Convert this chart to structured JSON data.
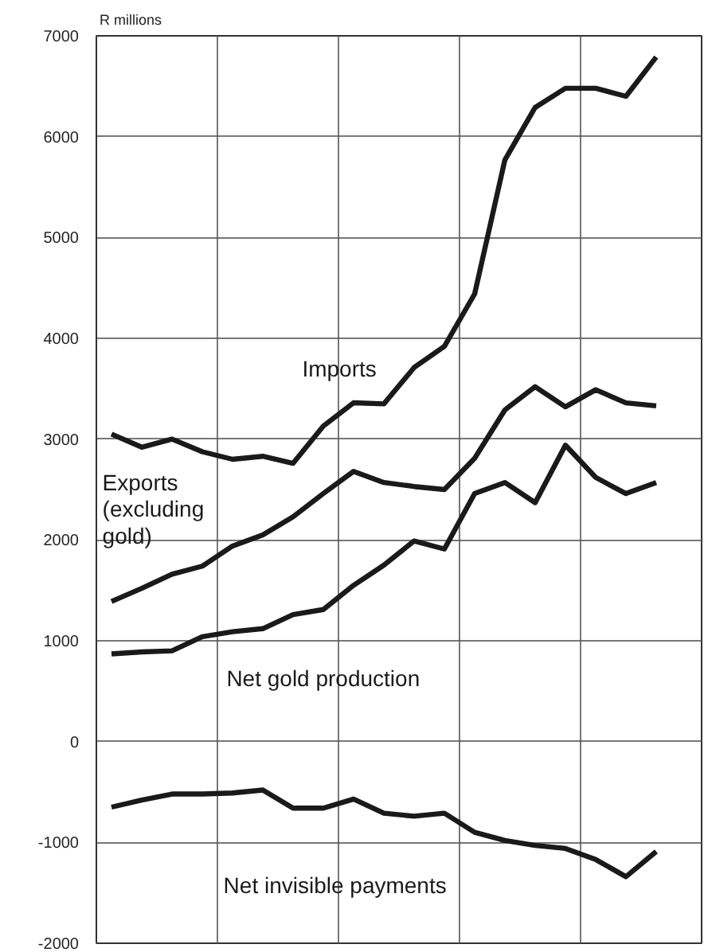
{
  "chart_data": {
    "type": "line",
    "ylabel": "R millions",
    "categories": [
      null,
      null,
      null,
      null,
      null,
      null,
      null,
      null,
      null,
      null,
      null,
      null,
      null,
      null,
      null,
      null,
      null,
      null,
      null
    ],
    "ylim": [
      -2000,
      7000
    ],
    "yticks": [
      -2000,
      -1000,
      0,
      1000,
      2000,
      3000,
      4000,
      5000,
      6000,
      7000
    ],
    "grid": true,
    "marker": "none",
    "line_style": "solid",
    "series": [
      {
        "name": "Imports",
        "color": "#1a1a1a",
        "values": [
          3050,
          2920,
          3000,
          2875,
          2800,
          2830,
          2760,
          3130,
          3360,
          3350,
          3710,
          3920,
          4440,
          5770,
          6290,
          6480,
          6480,
          6400,
          6790
        ]
      },
      {
        "name": "Exports\n(excluding\ngold)",
        "color": "#1a1a1a",
        "values": [
          1390,
          1520,
          1660,
          1740,
          1940,
          2050,
          2230,
          2460,
          2680,
          2570,
          2530,
          2500,
          2810,
          3290,
          3520,
          3320,
          3490,
          3360,
          3330
        ]
      },
      {
        "name": "Net gold production",
        "color": "#1a1a1a",
        "values": [
          870,
          890,
          900,
          1040,
          1090,
          1120,
          1260,
          1310,
          1550,
          1750,
          1990,
          1910,
          2460,
          2570,
          2370,
          2940,
          2620,
          2460,
          2570
        ]
      },
      {
        "name": "Net invisible payments",
        "color": "#1a1a1a",
        "values": [
          -650,
          -580,
          -520,
          -520,
          -510,
          -480,
          -660,
          -660,
          -570,
          -710,
          -740,
          -710,
          -900,
          -980,
          -1030,
          -1060,
          -1170,
          -1340,
          -1090
        ]
      }
    ]
  }
}
